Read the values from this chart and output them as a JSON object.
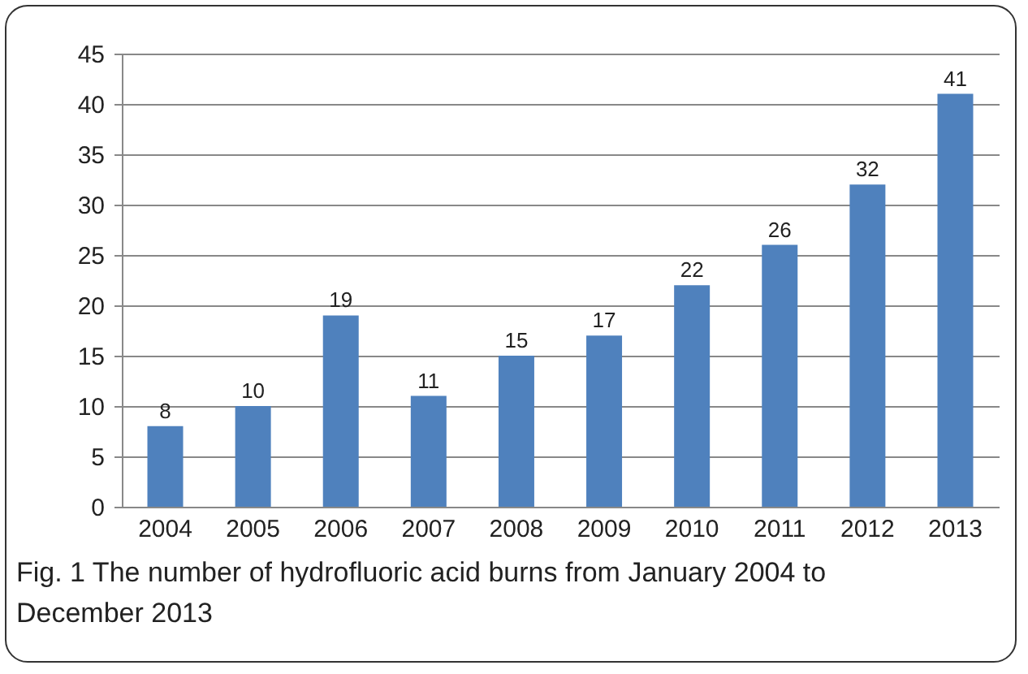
{
  "chart_data": {
    "type": "bar",
    "categories": [
      "2004",
      "2005",
      "2006",
      "2007",
      "2008",
      "2009",
      "2010",
      "2011",
      "2012",
      "2013"
    ],
    "values": [
      8,
      10,
      19,
      11,
      15,
      17,
      22,
      26,
      32,
      41
    ],
    "color": "#4f81bd",
    "ylim": [
      0,
      45
    ],
    "yticks": [
      0,
      5,
      10,
      15,
      20,
      25,
      30,
      35,
      40,
      45
    ],
    "grid": "y",
    "data_labels": true,
    "annotations": [
      "Fig. 1 The number of hydrofluoric acid burns from January 2004 to December 2013"
    ]
  }
}
